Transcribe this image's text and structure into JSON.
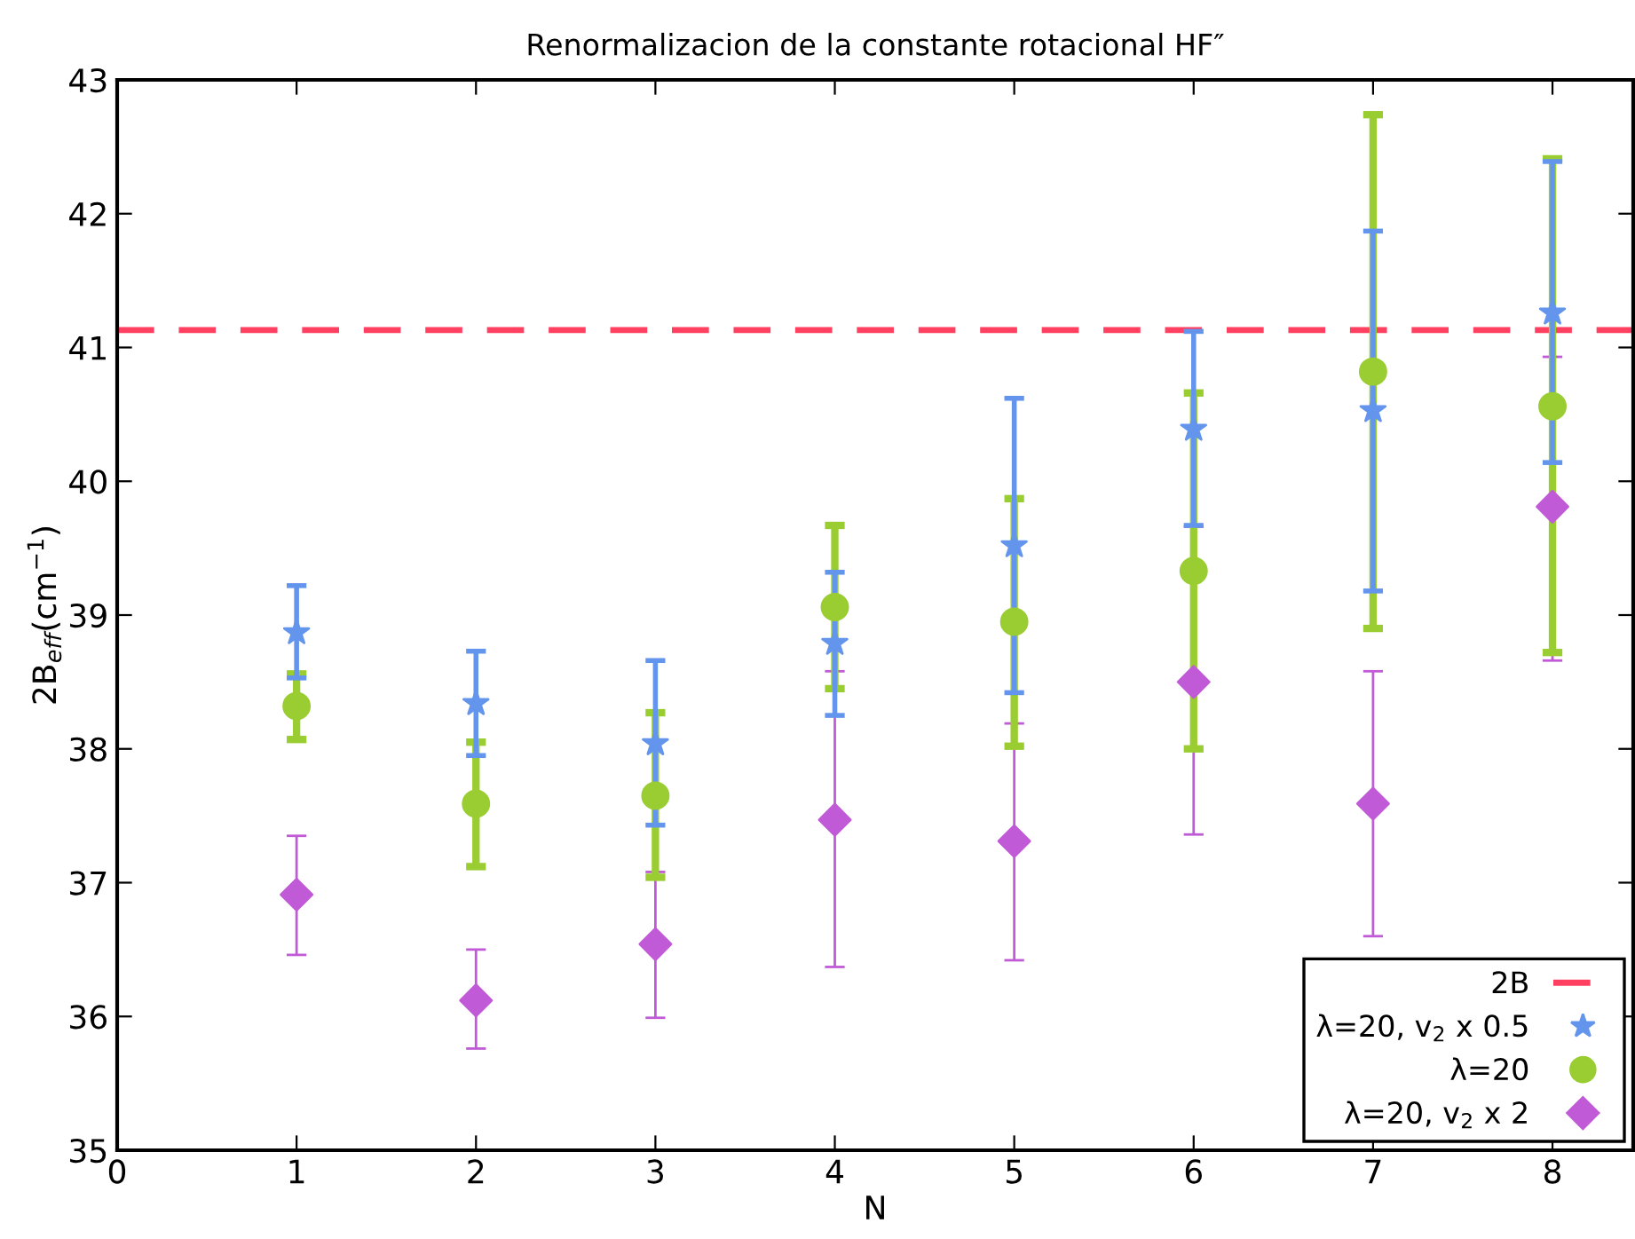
{
  "chart_data": {
    "type": "scatter",
    "title": "Renormalizacion de la constante rotacional HF″",
    "xlabel": "N",
    "ylabel": "2B$_{eff}$(cm$^{−1}$)",
    "x": [
      1,
      2,
      3,
      4,
      5,
      6,
      7,
      8
    ],
    "xlim": [
      0,
      8.45
    ],
    "xticks": [
      0,
      1,
      2,
      3,
      4,
      5,
      6,
      7,
      8
    ],
    "ylim": [
      35,
      43
    ],
    "yticks": [
      35,
      36,
      37,
      38,
      39,
      40,
      41,
      42,
      43
    ],
    "grid": false,
    "legend": "bottom right",
    "ref_lines": [
      {
        "axis": "y",
        "value": 41.13,
        "label": "2B",
        "color": "#ff4060",
        "line_style": "dashed"
      }
    ],
    "series": [
      {
        "name": "λ=20, v$_{2}$ x 0.5",
        "color": "#6495ed",
        "marker": "star",
        "values": [
          38.87,
          38.34,
          38.04,
          38.79,
          39.52,
          40.39,
          40.53,
          41.26
        ],
        "errors": [
          [
            38.53,
            39.22
          ],
          [
            37.95,
            38.73
          ],
          [
            37.43,
            38.66
          ],
          [
            38.25,
            39.32
          ],
          [
            38.42,
            40.62
          ],
          [
            39.67,
            41.12
          ],
          [
            39.18,
            41.87
          ],
          [
            40.14,
            42.39
          ]
        ]
      },
      {
        "name": "λ=20",
        "color": "#9acd32",
        "marker": "circle",
        "values": [
          38.32,
          37.59,
          37.65,
          39.06,
          38.95,
          39.33,
          40.82,
          40.56
        ],
        "errors": [
          [
            38.07,
            38.56
          ],
          [
            37.12,
            38.05
          ],
          [
            37.04,
            38.27
          ],
          [
            38.45,
            39.67
          ],
          [
            38.02,
            39.87
          ],
          [
            38.0,
            40.66
          ],
          [
            38.9,
            42.74
          ],
          [
            38.72,
            42.41
          ]
        ]
      },
      {
        "name": "λ=20, v$_{2}$ x 2",
        "color": "#c05ad6",
        "marker": "diamond",
        "values": [
          36.91,
          36.12,
          36.54,
          37.47,
          37.31,
          38.5,
          37.59,
          39.81
        ],
        "errors": [
          [
            36.46,
            37.35
          ],
          [
            35.76,
            36.5
          ],
          [
            35.99,
            37.08
          ],
          [
            36.37,
            38.58
          ],
          [
            36.42,
            38.19
          ],
          [
            37.36,
            39.66
          ],
          [
            36.6,
            38.58
          ],
          [
            38.66,
            40.93
          ]
        ]
      }
    ]
  }
}
